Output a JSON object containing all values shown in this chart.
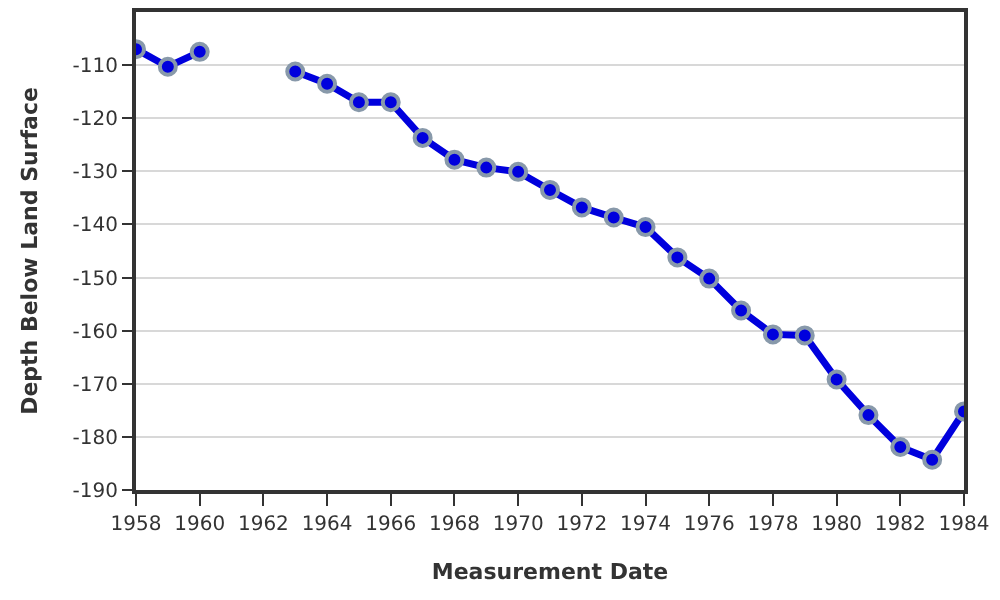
{
  "chart_data": {
    "type": "line",
    "xlabel": "Measurement Date",
    "ylabel": "Depth Below Land Surface",
    "x": [
      1958,
      1959,
      1960,
      1961,
      1962,
      1963,
      1964,
      1965,
      1966,
      1967,
      1968,
      1969,
      1970,
      1971,
      1972,
      1973,
      1974,
      1975,
      1976,
      1977,
      1978,
      1979,
      1980,
      1981,
      1982,
      1983,
      1984
    ],
    "series": [
      {
        "color": "#0000dd",
        "values": [
          -107,
          -110.3,
          -107.5,
          null,
          null,
          -111.2,
          -113.5,
          -117,
          -117,
          -123.7,
          -127.8,
          -129.3,
          -130.1,
          -133.5,
          -136.8,
          -138.7,
          -140.5,
          -146.2,
          -150.2,
          -156.2,
          -160.7,
          -160.9,
          -169.2,
          -175.9,
          -181.9,
          -184.3,
          -175.2
        ]
      }
    ],
    "xlim": [
      1958,
      1984
    ],
    "xticks": [
      1958,
      1960,
      1962,
      1964,
      1966,
      1968,
      1970,
      1972,
      1974,
      1976,
      1978,
      1980,
      1982,
      1984
    ],
    "ylim": [
      -190,
      -100
    ],
    "yticks": [
      -190,
      -180,
      -170,
      -160,
      -150,
      -140,
      -130,
      -120,
      -110
    ],
    "grid": "y",
    "marker": "circle",
    "line_style": "solid"
  }
}
